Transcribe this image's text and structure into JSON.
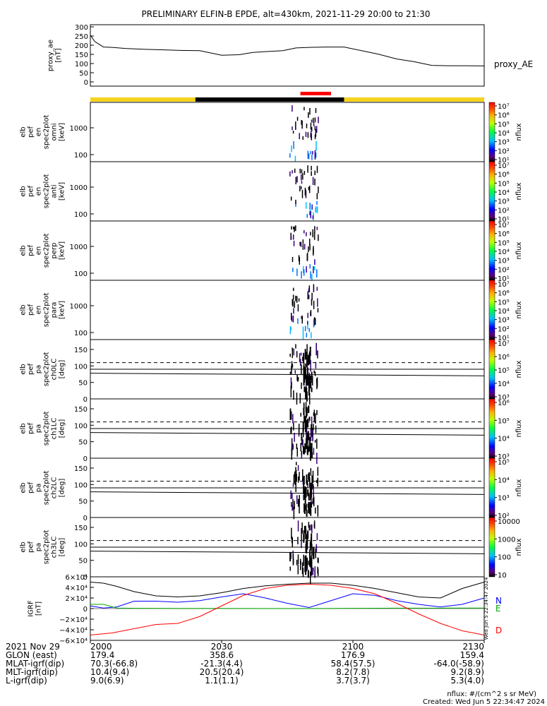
{
  "title": "PRELIMINARY ELFIN-B EPDE, alt=430km, 2021-11-29 20:00 to 21:30",
  "colors": {
    "yellow": "#f5d31c",
    "black": "#000000",
    "red": "#ff0000",
    "north": "#0000ff",
    "east": "#00aa00",
    "down": "#ff0000"
  },
  "state_bar": [
    {
      "from": 0,
      "to": 24,
      "color": "#f5d31c"
    },
    {
      "from": 24,
      "to": 58,
      "color": "#000000"
    },
    {
      "from": 58,
      "to": 90,
      "color": "#f5d31c"
    }
  ],
  "science_bar": {
    "from": 48,
    "to": 55,
    "color": "#ff0000"
  },
  "chart_data": [
    {
      "type": "line",
      "panel": "proxy_ae",
      "ylabel": [
        "proxy_ae",
        "[nT]"
      ],
      "ylim": [
        0,
        300
      ],
      "yticks": [
        "0",
        "50",
        "100",
        "150",
        "200",
        "250",
        "300"
      ],
      "legend": "proxy_AE",
      "x": [
        0,
        1,
        3,
        5,
        8,
        12,
        16,
        20,
        25,
        30,
        34,
        37,
        40,
        44,
        47,
        50,
        54,
        58,
        62,
        66,
        70,
        74,
        78,
        82,
        86,
        90
      ],
      "y": [
        255,
        220,
        190,
        188,
        182,
        178,
        175,
        172,
        170,
        145,
        148,
        160,
        165,
        170,
        185,
        188,
        190,
        190,
        170,
        150,
        125,
        110,
        90,
        88,
        88,
        87
      ]
    },
    {
      "type": "heatmap",
      "panel": "omni",
      "ylabel": [
        "elb",
        "pef",
        "en",
        "spec2plot",
        "omni",
        "[keV]"
      ],
      "yticks": [
        "100",
        "1000"
      ],
      "colorbar": {
        "label": "nflux",
        "ticks": [
          "10¹",
          "10²",
          "10³",
          "10⁴",
          "10⁵",
          "10⁶",
          "10⁷"
        ]
      }
    },
    {
      "type": "heatmap",
      "panel": "anti",
      "ylabel": [
        "elb",
        "pef",
        "en",
        "spec2plot",
        "anti",
        "[keV]"
      ],
      "yticks": [
        "100",
        "1000"
      ],
      "colorbar": {
        "label": "nflux",
        "ticks": [
          "10¹",
          "10²",
          "10³",
          "10⁴",
          "10⁵",
          "10⁶",
          "10⁷"
        ]
      }
    },
    {
      "type": "heatmap",
      "panel": "perp",
      "ylabel": [
        "elb",
        "pef",
        "en",
        "spec2plot",
        "perp",
        "[keV]"
      ],
      "yticks": [
        "100",
        "1000"
      ],
      "colorbar": {
        "label": "nflux",
        "ticks": [
          "10¹",
          "10²",
          "10³",
          "10⁴",
          "10⁵",
          "10⁶",
          "10⁷"
        ]
      }
    },
    {
      "type": "heatmap",
      "panel": "para",
      "ylabel": [
        "elb",
        "pef",
        "en",
        "spec2plot",
        "para",
        "[keV]"
      ],
      "yticks": [
        "100",
        "1000"
      ],
      "colorbar": {
        "label": "nflux",
        "ticks": [
          "10¹",
          "10²",
          "10³",
          "10⁴",
          "10⁵",
          "10⁶",
          "10⁷"
        ]
      }
    },
    {
      "type": "heatmap",
      "panel": "ch0LC",
      "ylabel": [
        "elb",
        "pef",
        "pa",
        "spec2plot",
        "ch0LC",
        "[deg]"
      ],
      "ylim": [
        0,
        180
      ],
      "yticks": [
        "0",
        "50",
        "100",
        "150"
      ],
      "colorbar": {
        "label": "nflux",
        "ticks": [
          "10³",
          "10⁴",
          "10⁵",
          "10⁶",
          "10⁷"
        ]
      }
    },
    {
      "type": "heatmap",
      "panel": "ch1LC",
      "ylabel": [
        "elb",
        "pef",
        "pa",
        "spec2plot",
        "ch1LC",
        "[deg]"
      ],
      "ylim": [
        0,
        180
      ],
      "yticks": [
        "0",
        "50",
        "100",
        "150"
      ],
      "colorbar": {
        "label": "nflux",
        "ticks": [
          "10³",
          "10⁴",
          "10⁵",
          "10⁶"
        ]
      }
    },
    {
      "type": "heatmap",
      "panel": "ch2LC",
      "ylabel": [
        "elb",
        "pef",
        "pa",
        "spec2plot",
        "ch2LC",
        "[deg]"
      ],
      "ylim": [
        0,
        180
      ],
      "yticks": [
        "0",
        "50",
        "100",
        "150"
      ],
      "colorbar": {
        "label": "nflux",
        "ticks": [
          "10²",
          "10³",
          "10⁴",
          "10⁵"
        ]
      }
    },
    {
      "type": "heatmap",
      "panel": "ch3LC",
      "ylabel": [
        "elb",
        "pef",
        "pa",
        "spec2plot",
        "ch3LC",
        "[deg]"
      ],
      "ylim": [
        0,
        180
      ],
      "yticks": [
        "0",
        "50",
        "100",
        "150"
      ],
      "colorbar": {
        "label": "nflux",
        "ticks": [
          "10",
          "100",
          "1000",
          "10000"
        ]
      }
    },
    {
      "type": "line",
      "panel": "IGRF",
      "ylabel": [
        "IGRF",
        "[nT]"
      ],
      "ylim": [
        -60000,
        60000
      ],
      "yticks": [
        "−6×10⁴",
        "−4×10⁴",
        "−2×10⁴",
        "0",
        "2×10⁴",
        "4×10⁴",
        "6×10⁴"
      ],
      "side_text": "Wed Jun  5 22:34:47 2024",
      "series": [
        {
          "name": "N",
          "color": "#0000ff",
          "x": [
            0,
            3,
            6,
            10,
            15,
            20,
            25,
            30,
            35,
            40,
            45,
            50,
            55,
            60,
            65,
            70,
            75,
            80,
            85,
            90
          ],
          "y": [
            5000,
            1000,
            3000,
            14000,
            14000,
            12000,
            15000,
            22000,
            28000,
            20000,
            10000,
            2000,
            15000,
            28000,
            25000,
            15000,
            8000,
            3000,
            8000,
            20000
          ]
        },
        {
          "name": "E",
          "color": "#00aa00",
          "x": [
            0,
            3,
            6,
            10,
            20,
            30,
            40,
            50,
            60,
            70,
            80,
            90
          ],
          "y": [
            8000,
            8000,
            1000,
            500,
            400,
            300,
            200,
            100,
            500,
            800,
            900,
            1000
          ]
        },
        {
          "name": "D",
          "color": "#ff0000",
          "x": [
            0,
            5,
            10,
            15,
            20,
            25,
            30,
            35,
            40,
            45,
            50,
            55,
            60,
            65,
            70,
            75,
            80,
            85,
            90
          ],
          "y": [
            -50000,
            -46000,
            -38000,
            -30000,
            -28000,
            -15000,
            5000,
            25000,
            38000,
            44000,
            46000,
            44000,
            38000,
            28000,
            10000,
            -10000,
            -28000,
            -42000,
            -50000
          ]
        },
        {
          "name": "",
          "color": "#000000",
          "x": [
            0,
            3,
            6,
            10,
            15,
            20,
            25,
            30,
            35,
            40,
            45,
            50,
            55,
            60,
            65,
            70,
            75,
            80,
            85,
            90
          ],
          "y": [
            50000,
            48000,
            42000,
            32000,
            24000,
            22000,
            24000,
            30000,
            38000,
            43000,
            46000,
            48000,
            48000,
            44000,
            38000,
            30000,
            22000,
            20000,
            38000,
            50000
          ]
        }
      ]
    }
  ],
  "footer": {
    "rows": [
      [
        "2021 Nov 29",
        "2000",
        "2030",
        "2100",
        "2130"
      ],
      [
        "GLON (east)",
        "179.4",
        "358.6",
        "176.9",
        "159.4"
      ],
      [
        "MLAT-igrf(dip)",
        "70.3(-66.8)",
        "-21.3(4.4)",
        "58.4(57.5)",
        "-64.0(-58.9)"
      ],
      [
        "MLT-igrf(dip)",
        "10.4(9.4)",
        "20.5(20.4)",
        "8.2(7.8)",
        "9.2(8.9)"
      ],
      [
        "L-igrf(dip)",
        "9.0(6.9)",
        "1.1(1.1)",
        "3.7(3.7)",
        "5.3(4.0)"
      ]
    ],
    "units": "nflux: #/(cm^2 s sr MeV)",
    "created": "Created: Wed Jun  5 22:34:47 2024"
  }
}
